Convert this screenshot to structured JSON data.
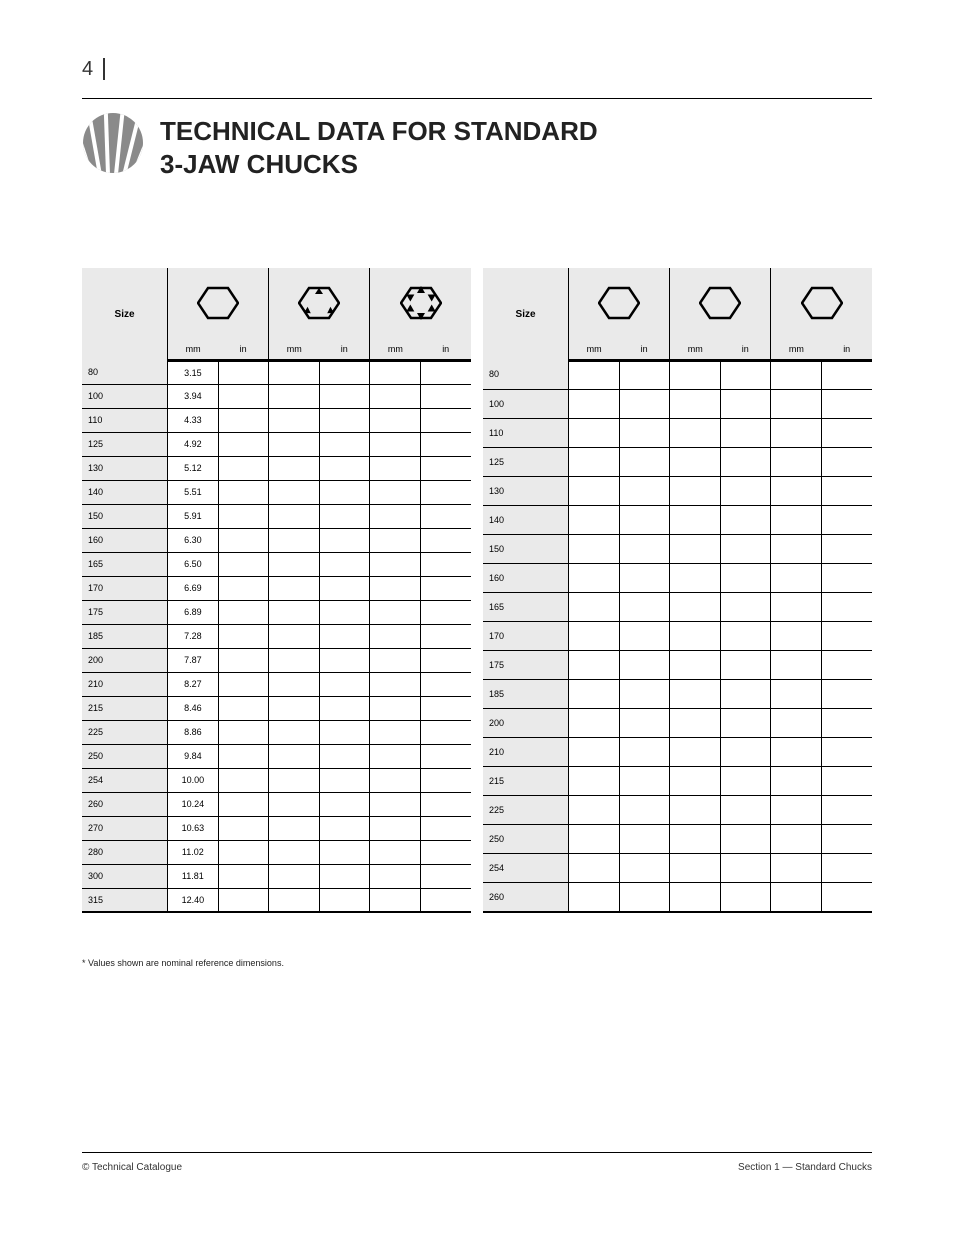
{
  "page_number": "4",
  "title_main": "TECHNICAL DATA FOR STANDARD",
  "title_sub": "3-JAW CHUCKS",
  "logo_color": "#8a8a8a",
  "header_bg": "#eaeaea",
  "table_left": {
    "icon_groups": [
      "hex-plain",
      "hex-3arrow",
      "hex-6arrow"
    ],
    "sub_labels": [
      "mm",
      "in",
      "mm",
      "in",
      "mm",
      "in"
    ],
    "size_col_header": "Size",
    "rows": [
      {
        "label": "80",
        "cells": [
          "3.15",
          "",
          "",
          "",
          "",
          ""
        ]
      },
      {
        "label": "100",
        "cells": [
          "3.94",
          "",
          "",
          "",
          "",
          ""
        ]
      },
      {
        "label": "110",
        "cells": [
          "4.33",
          "",
          "",
          "",
          "",
          ""
        ]
      },
      {
        "label": "125",
        "cells": [
          "4.92",
          "",
          "",
          "",
          "",
          ""
        ]
      },
      {
        "label": "130",
        "cells": [
          "5.12",
          "",
          "",
          "",
          "",
          ""
        ]
      },
      {
        "label": "140",
        "cells": [
          "5.51",
          "",
          "",
          "",
          "",
          ""
        ]
      },
      {
        "label": "150",
        "cells": [
          "5.91",
          "",
          "",
          "",
          "",
          ""
        ]
      },
      {
        "label": "160",
        "cells": [
          "6.30",
          "",
          "",
          "",
          "",
          ""
        ]
      },
      {
        "label": "165",
        "cells": [
          "6.50",
          "",
          "",
          "",
          "",
          ""
        ]
      },
      {
        "label": "170",
        "cells": [
          "6.69",
          "",
          "",
          "",
          "",
          ""
        ]
      },
      {
        "label": "175",
        "cells": [
          "6.89",
          "",
          "",
          "",
          "",
          ""
        ]
      },
      {
        "label": "185",
        "cells": [
          "7.28",
          "",
          "",
          "",
          "",
          ""
        ]
      },
      {
        "label": "200",
        "cells": [
          "7.87",
          "",
          "",
          "",
          "",
          ""
        ]
      },
      {
        "label": "210",
        "cells": [
          "8.27",
          "",
          "",
          "",
          "",
          ""
        ]
      },
      {
        "label": "215",
        "cells": [
          "8.46",
          "",
          "",
          "",
          "",
          ""
        ]
      },
      {
        "label": "225",
        "cells": [
          "8.86",
          "",
          "",
          "",
          "",
          ""
        ]
      },
      {
        "label": "250",
        "cells": [
          "9.84",
          "",
          "",
          "",
          "",
          ""
        ]
      },
      {
        "label": "254",
        "cells": [
          "10.00",
          "",
          "",
          "",
          "",
          ""
        ]
      },
      {
        "label": "260",
        "cells": [
          "10.24",
          "",
          "",
          "",
          "",
          ""
        ]
      },
      {
        "label": "270",
        "cells": [
          "10.63",
          "",
          "",
          "",
          "",
          ""
        ]
      },
      {
        "label": "280",
        "cells": [
          "11.02",
          "",
          "",
          "",
          "",
          ""
        ]
      },
      {
        "label": "300",
        "cells": [
          "11.81",
          "",
          "",
          "",
          "",
          ""
        ]
      },
      {
        "label": "315",
        "cells": [
          "12.40",
          "",
          "",
          "",
          "",
          ""
        ]
      }
    ]
  },
  "table_right": {
    "icon_groups": [
      "hex-plain",
      "hex-plain",
      "hex-plain"
    ],
    "sub_labels": [
      "mm",
      "in",
      "mm",
      "in",
      "mm",
      "in"
    ],
    "size_col_header": "Size",
    "rows": [
      {
        "label": "80",
        "cells": [
          "",
          "",
          "",
          "",
          "",
          ""
        ]
      },
      {
        "label": "100",
        "cells": [
          "",
          "",
          "",
          "",
          "",
          ""
        ]
      },
      {
        "label": "110",
        "cells": [
          "",
          "",
          "",
          "",
          "",
          ""
        ]
      },
      {
        "label": "125",
        "cells": [
          "",
          "",
          "",
          "",
          "",
          ""
        ]
      },
      {
        "label": "130",
        "cells": [
          "",
          "",
          "",
          "",
          "",
          ""
        ]
      },
      {
        "label": "140",
        "cells": [
          "",
          "",
          "",
          "",
          "",
          ""
        ]
      },
      {
        "label": "150",
        "cells": [
          "",
          "",
          "",
          "",
          "",
          ""
        ]
      },
      {
        "label": "160",
        "cells": [
          "",
          "",
          "",
          "",
          "",
          ""
        ]
      },
      {
        "label": "165",
        "cells": [
          "",
          "",
          "",
          "",
          "",
          ""
        ]
      },
      {
        "label": "170",
        "cells": [
          "",
          "",
          "",
          "",
          "",
          ""
        ]
      },
      {
        "label": "175",
        "cells": [
          "",
          "",
          "",
          "",
          "",
          ""
        ]
      },
      {
        "label": "185",
        "cells": [
          "",
          "",
          "",
          "",
          "",
          ""
        ]
      },
      {
        "label": "200",
        "cells": [
          "",
          "",
          "",
          "",
          "",
          ""
        ]
      },
      {
        "label": "210",
        "cells": [
          "",
          "",
          "",
          "",
          "",
          ""
        ]
      },
      {
        "label": "215",
        "cells": [
          "",
          "",
          "",
          "",
          "",
          ""
        ]
      },
      {
        "label": "225",
        "cells": [
          "",
          "",
          "",
          "",
          "",
          ""
        ]
      },
      {
        "label": "250",
        "cells": [
          "",
          "",
          "",
          "",
          "",
          ""
        ]
      },
      {
        "label": "254",
        "cells": [
          "",
          "",
          "",
          "",
          "",
          ""
        ]
      },
      {
        "label": "260",
        "cells": [
          "",
          "",
          "",
          "",
          "",
          ""
        ]
      }
    ]
  },
  "footnote": "* Values shown are nominal reference dimensions.",
  "footer_left": "© Technical Catalogue",
  "footer_right": "Section 1 — Standard Chucks"
}
